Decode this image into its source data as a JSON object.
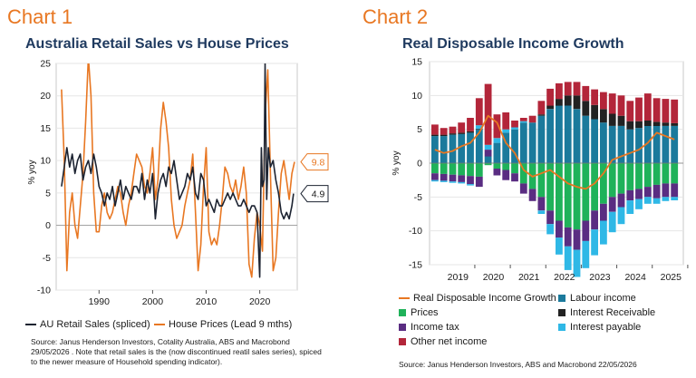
{
  "chart1": {
    "heading": "Chart 1",
    "source": "Source: Janus Henderson Investors, Cotality Australia, ABS and Macrobond 29/05/2026 . Note that retail sales is the (now discontinued reatil sales series), spiced to the newer measure of Household spending indicator).",
    "callouts": [
      "9.8",
      "4.9"
    ]
  },
  "chart2": {
    "heading": "Chart 2",
    "source": "Source: Janus Henderson Investors, ABS and Macrobond  22/05/2026"
  },
  "colors": {
    "heading": "#e87722",
    "title": "#1f3a5f",
    "retail": "#1c2331",
    "house": "#e87722",
    "labour": "#1b7a9c",
    "prices": "#1fb25a",
    "interest_receivable": "#222222",
    "income_tax": "#5a2d82",
    "interest_payable": "#2fb8e6",
    "other": "#b3263a",
    "rdi": "#e87722"
  },
  "chart_data": [
    {
      "type": "line",
      "title": "Australia Retail Sales vs House Prices",
      "ylabel": "% yoy",
      "xlabel": "",
      "xlim": [
        1982,
        2027
      ],
      "ylim": [
        -10,
        25
      ],
      "yticks": [
        -10,
        -5,
        0,
        5,
        10,
        15,
        20,
        25
      ],
      "xticks": [
        1990,
        2000,
        2010,
        2020
      ],
      "legend": "bottom",
      "series": [
        {
          "name": "AU Retail Sales (spliced)",
          "color": "#1c2331",
          "x": [
            1983,
            1983.5,
            1984,
            1984.5,
            1985,
            1985.5,
            1986,
            1986.5,
            1987,
            1987.5,
            1988,
            1988.5,
            1989,
            1989.5,
            1990,
            1990.5,
            1991,
            1991.5,
            1992,
            1992.5,
            1993,
            1993.5,
            1994,
            1994.5,
            1995,
            1995.5,
            1996,
            1996.5,
            1997,
            1997.5,
            1998,
            1998.5,
            1999,
            1999.5,
            2000,
            2000.5,
            2001,
            2001.5,
            2002,
            2002.5,
            2003,
            2003.5,
            2004,
            2004.5,
            2005,
            2005.5,
            2006,
            2006.5,
            2007,
            2007.5,
            2008,
            2008.5,
            2009,
            2009.5,
            2010,
            2010.5,
            2011,
            2011.5,
            2012,
            2012.5,
            2013,
            2013.5,
            2014,
            2014.5,
            2015,
            2015.5,
            2016,
            2016.5,
            2017,
            2017.5,
            2018,
            2018.5,
            2019,
            2019.5,
            2020,
            2020.3,
            2020.5,
            2020.8,
            2021,
            2021.3,
            2021.6,
            2022,
            2022.5,
            2023,
            2023.5,
            2024,
            2024.5,
            2025,
            2025.5,
            2026,
            2026.3
          ],
          "values": [
            6,
            9,
            12,
            9,
            11,
            8,
            10,
            11,
            7,
            9,
            10,
            8,
            11,
            9,
            6,
            5,
            3,
            5,
            4,
            6,
            3,
            5,
            7,
            4,
            6,
            5,
            4,
            6,
            6,
            5,
            8,
            4,
            7,
            5,
            8,
            1,
            5,
            7,
            8,
            6,
            9,
            8,
            10,
            7,
            4,
            5,
            6,
            8,
            7,
            9,
            5,
            4,
            8,
            7,
            3,
            4,
            3,
            2,
            4,
            3,
            3,
            4,
            5,
            4,
            5,
            4,
            3,
            3,
            4,
            3,
            2,
            3,
            3,
            2,
            -8,
            12,
            6,
            7,
            25,
            4,
            12,
            9,
            10,
            7,
            5,
            2,
            1,
            2,
            1,
            3,
            4.9
          ]
        },
        {
          "name": "House Prices (Lead 9 mths)",
          "color": "#e87722",
          "x": [
            1983,
            1983.5,
            1984,
            1984.5,
            1985,
            1985.5,
            1986,
            1986.5,
            1987,
            1987.5,
            1988,
            1988.5,
            1989,
            1989.5,
            1990,
            1990.5,
            1991,
            1991.5,
            1992,
            1992.5,
            1993,
            1993.5,
            1994,
            1994.5,
            1995,
            1995.5,
            1996,
            1996.5,
            1997,
            1997.5,
            1998,
            1998.5,
            1999,
            1999.5,
            2000,
            2000.5,
            2001,
            2001.5,
            2002,
            2002.5,
            2003,
            2003.5,
            2004,
            2004.5,
            2005,
            2005.5,
            2006,
            2006.5,
            2007,
            2007.5,
            2008,
            2008.5,
            2009,
            2009.5,
            2010,
            2010.5,
            2011,
            2011.5,
            2012,
            2012.5,
            2013,
            2013.5,
            2014,
            2014.5,
            2015,
            2015.5,
            2016,
            2016.5,
            2017,
            2017.5,
            2018,
            2018.5,
            2019,
            2019.5,
            2020,
            2020.5,
            2021,
            2021.5,
            2022,
            2022.5,
            2023,
            2023.5,
            2024,
            2024.5,
            2025,
            2025.5,
            2026,
            2026.5
          ],
          "values": [
            21,
            10,
            -7,
            2,
            5,
            0,
            -2,
            3,
            8,
            16,
            26,
            20,
            5,
            -1,
            -1,
            3,
            5,
            2,
            1,
            2,
            4,
            6,
            5,
            2,
            0,
            3,
            5,
            8,
            11,
            10,
            9,
            6,
            5,
            8,
            12,
            4,
            7,
            15,
            19,
            16,
            12,
            4,
            0,
            -2,
            -1,
            0,
            3,
            5,
            7,
            11,
            2,
            -7,
            -3,
            6,
            12,
            -1,
            -3,
            -2,
            -3,
            0,
            4,
            9,
            8,
            6,
            5,
            7,
            4,
            6,
            9,
            5,
            -6,
            -8,
            -2,
            2,
            0,
            -4,
            17,
            24,
            8,
            -7,
            -5,
            2,
            8,
            10,
            7,
            4,
            8,
            9.8
          ]
        }
      ],
      "annotations": [
        {
          "text": "9.8",
          "series": "House Prices (Lead 9 mths)"
        },
        {
          "text": "4.9",
          "series": "AU Retail Sales (spliced)"
        }
      ]
    },
    {
      "type": "bar",
      "stacked": true,
      "title": "Real Disposable Income Growth",
      "ylabel": "% yoy",
      "xlabel": "",
      "ylim": [
        -15,
        15
      ],
      "yticks": [
        -15,
        -10,
        -5,
        0,
        5,
        10,
        15
      ],
      "xticks": [
        2019,
        2020,
        2021,
        2022,
        2023,
        2024,
        2025
      ],
      "legend": "bottom",
      "x": [
        2018.75,
        2019,
        2019.25,
        2019.5,
        2019.75,
        2020,
        2020.25,
        2020.5,
        2020.75,
        2021,
        2021.25,
        2021.5,
        2021.75,
        2022,
        2022.25,
        2022.5,
        2022.75,
        2023,
        2023.25,
        2023.5,
        2023.75,
        2024,
        2024.25,
        2024.5,
        2024.75,
        2025,
        2025.25,
        2025.5
      ],
      "series": [
        {
          "name": "Labour income",
          "color": "#1b7a9c",
          "values": [
            4,
            4,
            4.2,
            4.3,
            4.5,
            5,
            1,
            3,
            4.5,
            5,
            6,
            6,
            7,
            8,
            8.5,
            8.5,
            8,
            7,
            6.5,
            6,
            5.5,
            5.5,
            5,
            5.2,
            5.5,
            5.5,
            5.5,
            5.5
          ]
        },
        {
          "name": "Prices",
          "color": "#1fb25a",
          "values": [
            -1.5,
            -1.6,
            -1.7,
            -1.8,
            -1.9,
            -2,
            -0.3,
            -0.8,
            -1,
            -1.5,
            -3,
            -3.8,
            -5,
            -7,
            -8.5,
            -9.5,
            -9.8,
            -8.5,
            -7,
            -6,
            -5,
            -4.5,
            -4,
            -3.8,
            -3.5,
            -3.2,
            -3,
            -3
          ]
        },
        {
          "name": "Interest Receivable",
          "color": "#222222",
          "values": [
            0.2,
            0.2,
            0.2,
            0.2,
            0.2,
            0.1,
            0,
            0,
            0,
            0,
            0,
            0,
            0.2,
            0.5,
            1,
            1.5,
            2,
            2.2,
            2.1,
            2,
            1.8,
            1.5,
            1.2,
            1,
            0.8,
            0.6,
            0.5,
            0.4
          ]
        },
        {
          "name": "Income tax",
          "color": "#5a2d82",
          "values": [
            -1,
            -1,
            -1,
            -1,
            -1.2,
            -1.5,
            1,
            -1,
            -1.5,
            -1.2,
            -1.5,
            -1.8,
            -2,
            -2,
            -2.5,
            -2.8,
            -3,
            -3,
            -2.8,
            -2.5,
            -2.2,
            -2,
            -1.5,
            -1.5,
            -1.5,
            -2,
            -2,
            -2
          ]
        },
        {
          "name": "Interest payable",
          "color": "#2fb8e6",
          "values": [
            -0.2,
            -0.2,
            -0.2,
            -0.2,
            -0.2,
            0.5,
            0.7,
            0.7,
            0.5,
            0.3,
            0.2,
            0,
            -0.5,
            -1.5,
            -2.5,
            -3.5,
            -4,
            -4,
            -3.8,
            -3.5,
            -3,
            -2.5,
            -2,
            -1.5,
            -1,
            -0.8,
            -0.6,
            -0.5
          ]
        },
        {
          "name": "Other net income",
          "color": "#b3263a",
          "values": [
            1.5,
            1,
            1,
            1.5,
            2,
            4,
            9,
            3.5,
            2.5,
            1,
            0.5,
            1,
            2,
            2.5,
            2.3,
            2,
            2,
            2.2,
            2.3,
            2.5,
            3,
            3,
            3,
            3.5,
            4,
            3.5,
            3.5,
            3.5
          ]
        },
        {
          "name": "Real Disposable Income Growth",
          "color": "#e87722",
          "kind": "line",
          "values": [
            2,
            1.5,
            1.8,
            2.5,
            3,
            4.5,
            7,
            6,
            3,
            1.5,
            -1,
            -2,
            -1.5,
            -1,
            -2,
            -3,
            -3.5,
            -3.8,
            -3,
            -1.5,
            0.5,
            1,
            1.5,
            2,
            3,
            4.5,
            4,
            3.5
          ]
        }
      ]
    }
  ]
}
